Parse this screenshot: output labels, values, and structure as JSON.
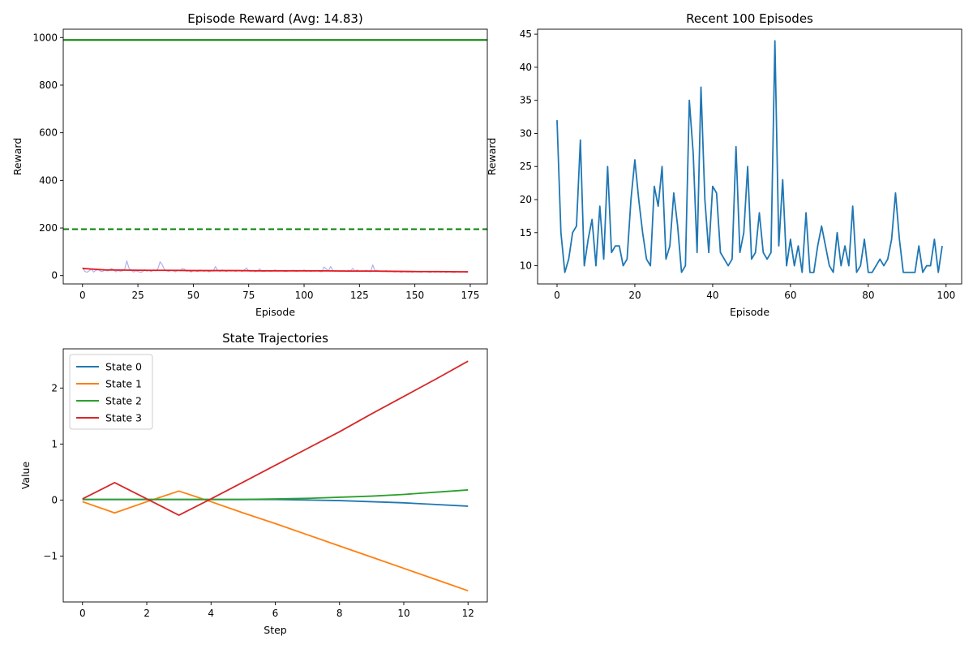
{
  "chart_data": [
    {
      "type": "line",
      "title": "Episode Reward (Avg: 14.83)",
      "xlabel": "Episode",
      "ylabel": "Reward",
      "xlim": [
        -8.7,
        182.7
      ],
      "ylim": [
        -35,
        1035
      ],
      "xticks": [
        0,
        25,
        50,
        75,
        100,
        125,
        150,
        175
      ],
      "yticks": [
        0,
        200,
        400,
        600,
        800,
        1000
      ],
      "grid": false,
      "reference_lines": [
        {
          "y": 990,
          "style": "solid",
          "color": "#008000"
        },
        {
          "y": 195,
          "style": "dashed",
          "color": "#008000"
        }
      ],
      "series": [
        {
          "color": "#b0b0f0",
          "x": [
            0,
            1,
            2,
            3,
            4,
            5,
            6,
            7,
            8,
            9,
            10,
            11,
            12,
            13,
            14,
            15,
            16,
            17,
            18,
            19,
            20,
            21,
            22,
            23,
            24,
            25,
            26,
            27,
            28,
            29,
            30,
            31,
            32,
            33,
            34,
            35,
            36,
            37,
            38,
            39,
            40,
            41,
            42,
            43,
            44,
            45,
            46,
            47,
            48,
            49,
            50,
            51,
            52,
            53,
            54,
            55,
            56,
            57,
            58,
            59,
            60,
            61,
            62,
            63,
            64,
            65,
            66,
            67,
            68,
            69,
            70,
            71,
            72,
            73,
            74,
            75,
            76,
            77,
            78,
            79,
            80,
            81,
            82,
            83,
            84,
            85,
            86,
            87,
            88,
            89,
            90,
            91,
            92,
            93,
            94,
            95,
            96,
            97,
            98,
            99,
            100,
            101,
            102,
            103,
            104,
            105,
            106,
            107,
            108,
            109,
            110,
            111,
            112,
            113,
            114,
            115,
            116,
            117,
            118,
            119,
            120,
            121,
            122,
            123,
            124,
            125,
            126,
            127,
            128,
            129,
            130,
            131,
            132,
            133,
            134,
            135,
            136,
            137,
            138,
            139,
            140,
            141,
            142,
            143,
            144,
            145,
            146,
            147,
            148,
            149,
            150,
            151,
            152,
            153,
            154,
            155,
            156,
            157,
            158,
            159,
            160,
            161,
            162,
            163,
            164,
            165,
            166,
            167,
            168,
            169,
            170,
            171,
            172,
            173,
            174
          ],
          "y": [
            35,
            18,
            14,
            20,
            28,
            15,
            22,
            25,
            19,
            17,
            24,
            20,
            21,
            30,
            24,
            16,
            22,
            18,
            20,
            26,
            62,
            30,
            22,
            15,
            20,
            18,
            14,
            16,
            25,
            19,
            22,
            17,
            24,
            20,
            28,
            58,
            45,
            25,
            20,
            18,
            22,
            20,
            16,
            24,
            20,
            30,
            27,
            18,
            21,
            15,
            22,
            20,
            17,
            24,
            21,
            18,
            22,
            16,
            20,
            19,
            38,
            22,
            18,
            24,
            20,
            17,
            23,
            19,
            21,
            18,
            20,
            22,
            17,
            24,
            32,
            20,
            18,
            22,
            16,
            21,
            28,
            19,
            17,
            22,
            20,
            18,
            21,
            24,
            19,
            20,
            22,
            18,
            17,
            21,
            20,
            23,
            19,
            18,
            22,
            20,
            24,
            18,
            21,
            17,
            20,
            19,
            22,
            18,
            16,
            36,
            28,
            20,
            38,
            22,
            18,
            20,
            17,
            19,
            21,
            18,
            22,
            20,
            30,
            18,
            24,
            17,
            20,
            19,
            22,
            18,
            16,
            45,
            20,
            22,
            18,
            19,
            17,
            21,
            16,
            20,
            18,
            15,
            19,
            17,
            14,
            18,
            16,
            15,
            17,
            14,
            19,
            15,
            16,
            14,
            18,
            16,
            15,
            13,
            17,
            14,
            16,
            15,
            14,
            18,
            13,
            16,
            15,
            14,
            13,
            17,
            15,
            14,
            16,
            13,
            15
          ]
        },
        {
          "color": "#e41a1c",
          "x": [
            0,
            10,
            20,
            30,
            40,
            50,
            60,
            70,
            80,
            90,
            100,
            110,
            120,
            130,
            140,
            150,
            160,
            170,
            174
          ],
          "y": [
            30,
            24,
            23,
            22,
            22,
            21,
            21,
            21,
            20,
            20,
            20,
            20,
            19,
            19,
            18,
            17,
            17,
            16,
            16
          ]
        }
      ]
    },
    {
      "type": "line",
      "title": "Recent 100 Episodes",
      "xlabel": "Episode",
      "ylabel": "Reward",
      "xlim": [
        -5,
        104
      ],
      "ylim": [
        7.25,
        45.75
      ],
      "xticks": [
        0,
        20,
        40,
        60,
        80,
        100
      ],
      "yticks": [
        10,
        15,
        20,
        25,
        30,
        35,
        40,
        45
      ],
      "grid": false,
      "series": [
        {
          "color": "#1f77b4",
          "x": [
            0,
            1,
            2,
            3,
            4,
            5,
            6,
            7,
            8,
            9,
            10,
            11,
            12,
            13,
            14,
            15,
            16,
            17,
            18,
            19,
            20,
            21,
            22,
            23,
            24,
            25,
            26,
            27,
            28,
            29,
            30,
            31,
            32,
            33,
            34,
            35,
            36,
            37,
            38,
            39,
            40,
            41,
            42,
            43,
            44,
            45,
            46,
            47,
            48,
            49,
            50,
            51,
            52,
            53,
            54,
            55,
            56,
            57,
            58,
            59,
            60,
            61,
            62,
            63,
            64,
            65,
            66,
            67,
            68,
            69,
            70,
            71,
            72,
            73,
            74,
            75,
            76,
            77,
            78,
            79,
            80,
            81,
            82,
            83,
            84,
            85,
            86,
            87,
            88,
            89,
            90,
            91,
            92,
            93,
            94,
            95,
            96,
            97,
            98,
            99
          ],
          "y": [
            32,
            15,
            9,
            11,
            15,
            16,
            29,
            10,
            14,
            17,
            10,
            19,
            11,
            25,
            12,
            13,
            13,
            10,
            11,
            20,
            26,
            20,
            15,
            11,
            10,
            22,
            19,
            25,
            11,
            13,
            21,
            16,
            9,
            10,
            35,
            27,
            12,
            37,
            20,
            12,
            22,
            21,
            12,
            11,
            10,
            11,
            28,
            12,
            15,
            25,
            11,
            12,
            18,
            12,
            11,
            12,
            44,
            13,
            23,
            10,
            14,
            10,
            13,
            9,
            18,
            9,
            9,
            13,
            16,
            13,
            10,
            9,
            15,
            10,
            13,
            10,
            19,
            9,
            10,
            14,
            9,
            9,
            10,
            11,
            10,
            11,
            14,
            21,
            14,
            9,
            9,
            9,
            9,
            13,
            9,
            10,
            10,
            14,
            9,
            13
          ]
        }
      ]
    },
    {
      "type": "line",
      "title": "State Trajectories",
      "xlabel": "Step",
      "ylabel": "Value",
      "xlim": [
        -0.6,
        12.6
      ],
      "ylim": [
        -1.82,
        2.7
      ],
      "xticks": [
        0,
        2,
        4,
        6,
        8,
        10,
        12
      ],
      "yticks": [
        -1,
        0,
        1,
        2
      ],
      "ytick_labels": [
        "−1",
        "0",
        "1",
        "2"
      ],
      "grid": false,
      "legend": "upper-left",
      "series": [
        {
          "name": "State 0",
          "color": "#1f77b4",
          "x": [
            0,
            1,
            2,
            3,
            4,
            5,
            6,
            7,
            8,
            9,
            10,
            11,
            12
          ],
          "y": [
            0.01,
            0.01,
            0.01,
            0.01,
            0.01,
            0.01,
            0.01,
            0.0,
            -0.01,
            -0.03,
            -0.05,
            -0.08,
            -0.11
          ]
        },
        {
          "name": "State 1",
          "color": "#ff7f0e",
          "x": [
            0,
            1,
            2,
            3,
            4,
            5,
            6,
            7,
            8,
            9,
            10,
            11,
            12
          ],
          "y": [
            -0.03,
            -0.23,
            -0.03,
            0.16,
            -0.03,
            -0.23,
            -0.42,
            -0.62,
            -0.82,
            -1.02,
            -1.22,
            -1.42,
            -1.62
          ]
        },
        {
          "name": "State 2",
          "color": "#2ca02c",
          "x": [
            0,
            1,
            2,
            3,
            4,
            5,
            6,
            7,
            8,
            9,
            10,
            11,
            12
          ],
          "y": [
            0.01,
            0.01,
            0.01,
            0.01,
            0.01,
            0.01,
            0.02,
            0.03,
            0.05,
            0.07,
            0.1,
            0.14,
            0.18
          ]
        },
        {
          "name": "State 3",
          "color": "#d62728",
          "x": [
            0,
            1,
            2,
            3,
            4,
            5,
            6,
            7,
            8,
            9,
            10,
            11,
            12
          ],
          "y": [
            0.02,
            0.31,
            0.02,
            -0.27,
            0.02,
            0.32,
            0.62,
            0.92,
            1.22,
            1.54,
            1.85,
            2.16,
            2.48
          ]
        }
      ]
    }
  ]
}
